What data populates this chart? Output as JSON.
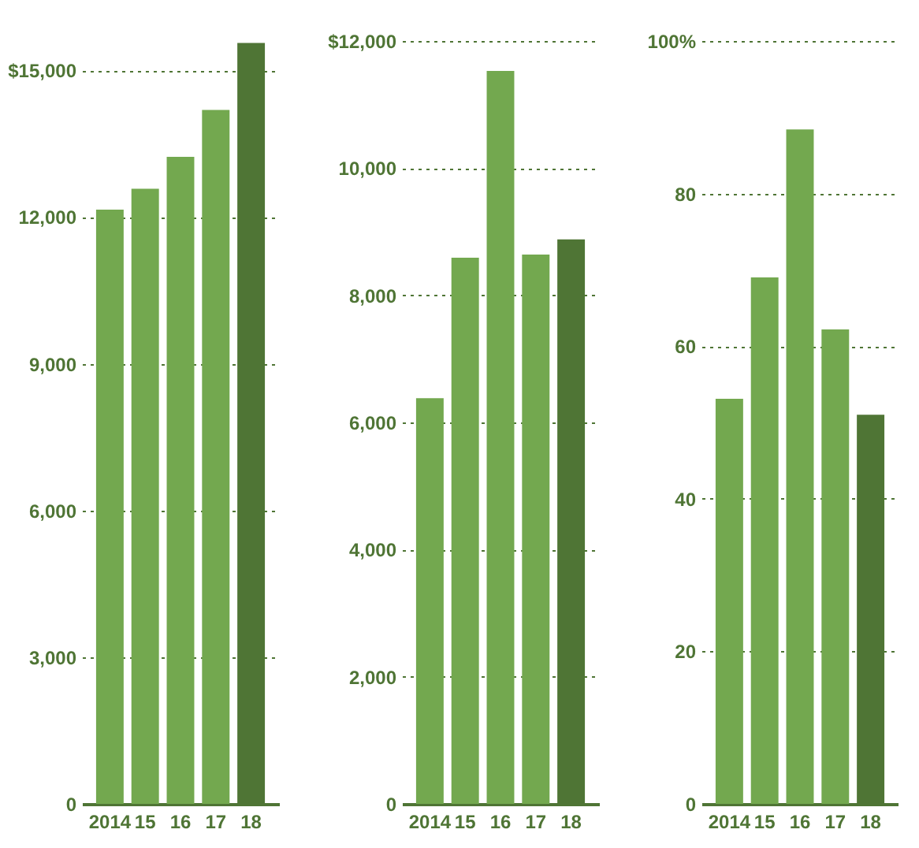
{
  "chart_data": [
    {
      "type": "bar",
      "categories": [
        "2014",
        "15",
        "16",
        "17",
        "18"
      ],
      "values": [
        12150,
        12580,
        13230,
        14190,
        15560
      ],
      "colors": [
        "#73a84f",
        "#73a84f",
        "#73a84f",
        "#73a84f",
        "#4f7535"
      ],
      "ylim": [
        0,
        15600
      ],
      "yticks": [
        0,
        {
          "value": 3000,
          "label": "3,000"
        },
        {
          "value": 6000,
          "label": "6,000"
        },
        {
          "value": 9000,
          "label": "9,000"
        },
        {
          "value": 12000,
          "label": "12,000"
        },
        {
          "value": 15000,
          "label": "$15,000"
        }
      ],
      "grid": "y"
    },
    {
      "type": "bar",
      "categories": [
        "2014",
        "15",
        "16",
        "17",
        "18"
      ],
      "values": [
        6380,
        8590,
        11530,
        8640,
        8880
      ],
      "colors": [
        "#73a84f",
        "#73a84f",
        "#73a84f",
        "#73a84f",
        "#4f7535"
      ],
      "ylim": [
        0,
        12000
      ],
      "yticks": [
        0,
        {
          "value": 2000,
          "label": "2,000"
        },
        {
          "value": 4000,
          "label": "4,000"
        },
        {
          "value": 6000,
          "label": "6,000"
        },
        {
          "value": 8000,
          "label": "8,000"
        },
        {
          "value": 10000,
          "label": "10,000"
        },
        {
          "value": 12000,
          "label": "$12,000"
        }
      ],
      "grid": "y"
    },
    {
      "type": "bar",
      "categories": [
        "2014",
        "15",
        "16",
        "17",
        "18"
      ],
      "values": [
        53.1,
        69.0,
        88.4,
        62.2,
        51.0
      ],
      "colors": [
        "#73a84f",
        "#73a84f",
        "#73a84f",
        "#73a84f",
        "#4f7535"
      ],
      "ylim": [
        0,
        100
      ],
      "yticks": [
        0,
        20,
        40,
        60,
        80,
        {
          "value": 100,
          "label": "100%"
        }
      ],
      "grid": "y"
    }
  ]
}
